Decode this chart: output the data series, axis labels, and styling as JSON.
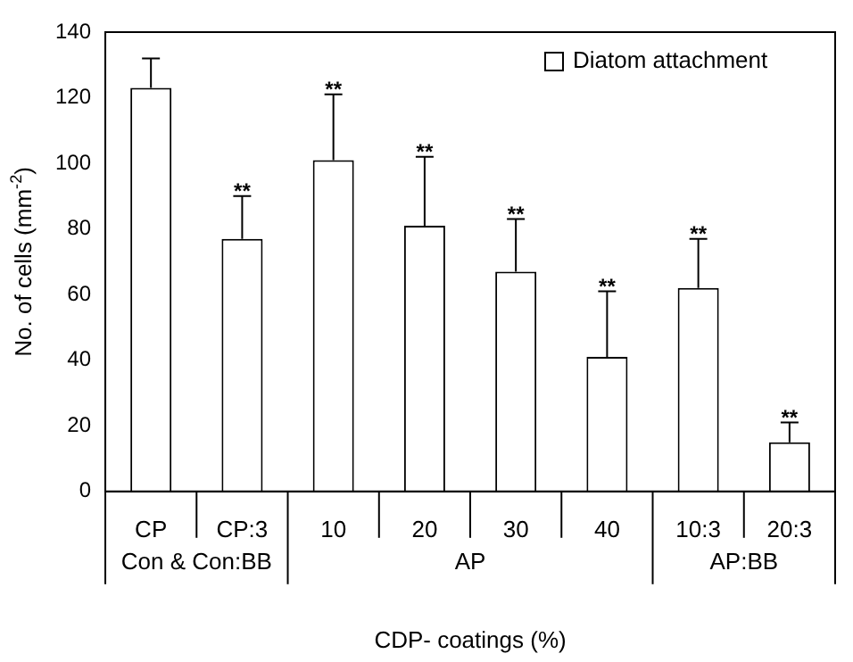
{
  "chart_data": {
    "type": "bar",
    "xlabel": "CDP- coatings (%)",
    "ylabel": "No. of cells (mm$^{-2}$)",
    "categories": [
      "CP",
      "CP:3",
      "10",
      "20",
      "30",
      "40",
      "10:3",
      "20:3"
    ],
    "series": [
      {
        "name": "Diatom attachment",
        "color": "#ffffff",
        "values": [
          123,
          77,
          101,
          81,
          67,
          41,
          62,
          15
        ],
        "errors": [
          [
            123,
            132
          ],
          [
            77,
            90
          ],
          [
            101,
            121
          ],
          [
            81,
            102
          ],
          [
            67,
            83
          ],
          [
            41,
            61
          ],
          [
            62,
            77
          ],
          [
            15,
            21
          ]
        ]
      }
    ],
    "ylim": [
      0,
      140
    ],
    "yticks": [
      0,
      20,
      40,
      60,
      80,
      100,
      120,
      140
    ],
    "legend": "top right",
    "annotations": [
      {
        "text": "**",
        "x": "CP:3",
        "y": 90
      },
      {
        "text": "**",
        "x": "10",
        "y": 121
      },
      {
        "text": "**",
        "x": "20",
        "y": 102
      },
      {
        "text": "**",
        "x": "30",
        "y": 83
      },
      {
        "text": "**",
        "x": "40",
        "y": 61
      },
      {
        "text": "**",
        "x": "10:3",
        "y": 77
      },
      {
        "text": "**",
        "x": "20:3",
        "y": 21
      },
      {
        "text": "Con & Con:BB"
      },
      {
        "text": "AP"
      },
      {
        "text": "AP:BB"
      }
    ]
  }
}
